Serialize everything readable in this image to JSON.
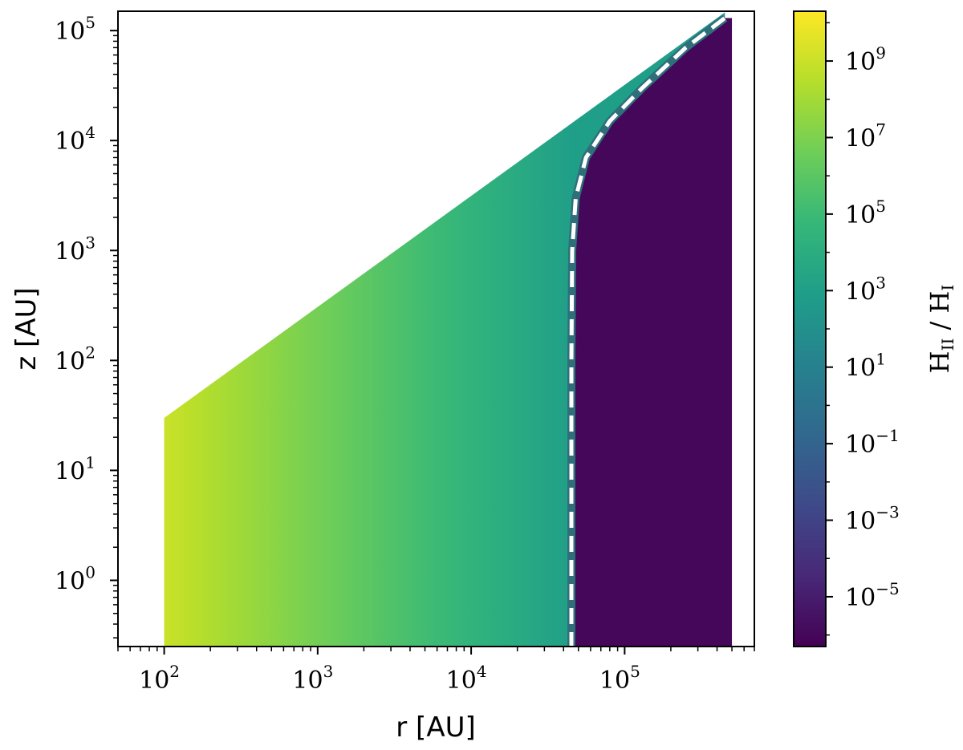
{
  "chart_data": {
    "type": "heatmap",
    "title": "",
    "xlabel": "r [AU]",
    "ylabel": "z [AU]",
    "x_scale": "log",
    "y_scale": "log",
    "xlim": [
      50,
      700000
    ],
    "ylim": [
      0.25,
      150000
    ],
    "x_ticks": [
      {
        "value": 100,
        "base": "10",
        "exp": "2"
      },
      {
        "value": 1000,
        "base": "10",
        "exp": "3"
      },
      {
        "value": 10000,
        "base": "10",
        "exp": "4"
      },
      {
        "value": 100000,
        "base": "10",
        "exp": "5"
      }
    ],
    "y_ticks": [
      {
        "value": 1,
        "base": "10",
        "exp": "0"
      },
      {
        "value": 10,
        "base": "10",
        "exp": "1"
      },
      {
        "value": 100,
        "base": "10",
        "exp": "2"
      },
      {
        "value": 1000,
        "base": "10",
        "exp": "3"
      },
      {
        "value": 10000,
        "base": "10",
        "exp": "4"
      },
      {
        "value": 100000,
        "base": "10",
        "exp": "5"
      }
    ],
    "domain": {
      "r_min": 100,
      "r_max": 500000,
      "z_min": 0.25,
      "upper_boundary": [
        [
          100,
          30
        ],
        [
          400000,
          130000
        ]
      ],
      "ionization_front_r": 45000,
      "ionization_front_curve": [
        [
          45000,
          0.25
        ],
        [
          45000,
          1
        ],
        [
          45000,
          100
        ],
        [
          45500,
          1000
        ],
        [
          48000,
          3000
        ],
        [
          56000,
          7000
        ],
        [
          80000,
          15000
        ],
        [
          130000,
          30000
        ],
        [
          250000,
          70000
        ],
        [
          450000,
          130000
        ]
      ]
    },
    "ratio_values": {
      "ionized_at_r100": 1000000000,
      "ionized_at_front": 1000,
      "neutral_region": 1e-06
    },
    "colorbar": {
      "label": "H II / H I",
      "label_parts": {
        "h1": "H",
        "s1": "II",
        "sep": " / ",
        "h2": "H",
        "s2": "I"
      },
      "scale": "log",
      "range": [
        5e-07,
        20000000000
      ],
      "ticks": [
        {
          "value": 1e-05,
          "base": "10",
          "exp": "−5"
        },
        {
          "value": 0.001,
          "base": "10",
          "exp": "−3"
        },
        {
          "value": 0.1,
          "base": "10",
          "exp": "−1"
        },
        {
          "value": 10,
          "base": "10",
          "exp": "1"
        },
        {
          "value": 1000,
          "base": "10",
          "exp": "3"
        },
        {
          "value": 100000,
          "base": "10",
          "exp": "5"
        },
        {
          "value": 10000000,
          "base": "10",
          "exp": "7"
        },
        {
          "value": 1000000000,
          "base": "10",
          "exp": "9"
        }
      ],
      "colormap": "viridis",
      "colormap_stops": [
        "#440154",
        "#482878",
        "#3e4a89",
        "#31688e",
        "#26828e",
        "#1f9e89",
        "#35b779",
        "#6ece58",
        "#b5de2b",
        "#fde725"
      ]
    },
    "front_line_style": "white dashed",
    "grid": false
  }
}
